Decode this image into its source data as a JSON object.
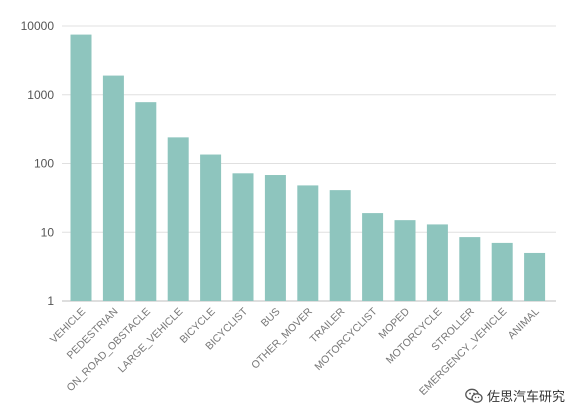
{
  "chart_data": {
    "type": "bar",
    "title": "",
    "xlabel": "",
    "ylabel": "",
    "yscale": "log",
    "ylim": [
      1,
      10000
    ],
    "yticks": [
      1,
      10,
      100,
      1000,
      10000
    ],
    "ytick_labels": [
      "1",
      "10",
      "100",
      "1000",
      "10000"
    ],
    "grid": true,
    "bar_color": "#8ec5be",
    "categories": [
      "VEHICLE",
      "PEDESTRIAN",
      "ON_ROAD_OBSTACLE",
      "LARGE_VEHICLE",
      "BICYCLE",
      "BICYCLIST",
      "BUS",
      "OTHER_MOVER",
      "TRAILER",
      "MOTORCYCLIST",
      "MOPED",
      "MOTORCYCLE",
      "STROLLER",
      "EMERGENCY_VEHICLE",
      "ANIMAL"
    ],
    "values": [
      7500,
      1900,
      780,
      240,
      135,
      72,
      68,
      48,
      41,
      19,
      15,
      13,
      8.5,
      7,
      5
    ]
  },
  "watermark": {
    "icon": "wechat-icon",
    "text": "佐思汽车研究"
  }
}
